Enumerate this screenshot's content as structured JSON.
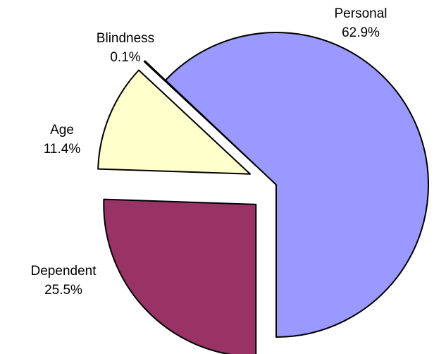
{
  "chart_data": {
    "type": "pie",
    "categories": [
      "Dependent",
      "Age",
      "Blindness",
      "Personal"
    ],
    "values": [
      25.5,
      11.4,
      0.1,
      62.9
    ],
    "value_labels": [
      "25.5%",
      "11.4%",
      "0.1%",
      "62.9%"
    ],
    "colors": [
      "#993366",
      "#ffffcc",
      "#ccffff",
      "#9999ff"
    ]
  }
}
